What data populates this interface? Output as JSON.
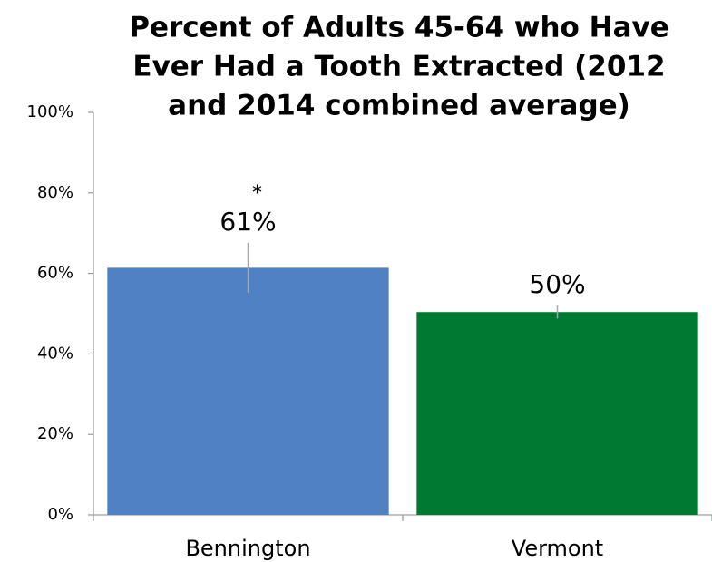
{
  "chart_data": {
    "type": "bar",
    "title": [
      "Percent of Adults 45-64 who Have",
      "Ever Had a Tooth Extracted (2012",
      "and 2014 combined average)"
    ],
    "categories": [
      "Bennington",
      "Vermont"
    ],
    "values": [
      61.4,
      50.4
    ],
    "value_labels": [
      "61%",
      "50%"
    ],
    "errors": [
      6.2,
      1.6
    ],
    "colors": [
      "#4f81c4",
      "#007a33"
    ],
    "annotations": [
      "*"
    ],
    "ylim": [
      0,
      100
    ],
    "yticks": [
      {
        "value": 0,
        "label": "0%"
      },
      {
        "value": 20,
        "label": "20%"
      },
      {
        "value": 40,
        "label": "40%"
      },
      {
        "value": 60,
        "label": "60%"
      },
      {
        "value": 80,
        "label": "80%"
      },
      {
        "value": 100,
        "label": "100%"
      }
    ],
    "grid": false
  }
}
